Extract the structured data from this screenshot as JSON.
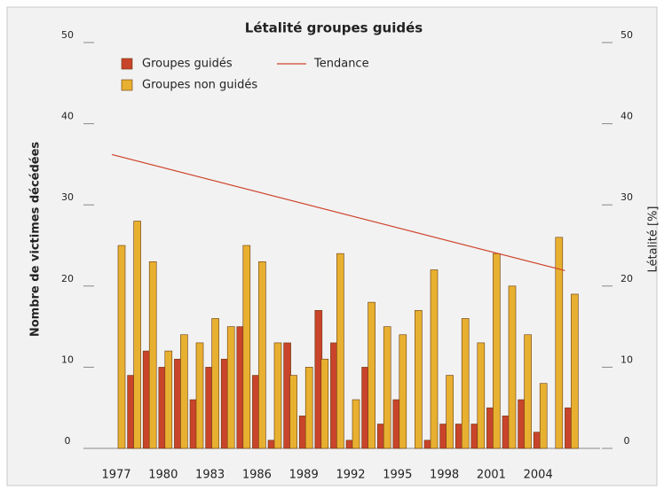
{
  "chart_data": {
    "type": "bar",
    "title": "Létalité groupes guidés",
    "y_label": "Nombre de victimes décédées",
    "y2_label": "Létalité [%]",
    "categories": [
      "1977",
      null,
      null,
      "1980",
      null,
      null,
      "1983",
      null,
      null,
      "1986",
      null,
      null,
      "1989",
      null,
      null,
      "1992",
      null,
      null,
      "1995",
      null,
      null,
      "1998",
      null,
      null,
      "2001",
      null,
      null,
      "2004",
      null,
      null
    ],
    "series": [
      {
        "name": "Groupes guidés",
        "color": "#c8442a",
        "values": [
          0,
          9,
          12,
          10,
          11,
          6,
          10,
          11,
          15,
          9,
          1,
          13,
          4,
          17,
          13,
          1,
          10,
          3,
          6,
          0,
          1,
          3,
          3,
          3,
          5,
          4,
          6,
          2,
          0,
          5
        ]
      },
      {
        "name": "Groupes non guidés",
        "color": "#e8b030",
        "values": [
          25,
          28,
          23,
          12,
          14,
          13,
          16,
          15,
          25,
          23,
          13,
          9,
          10,
          11,
          24,
          6,
          18,
          15,
          14,
          17,
          22,
          9,
          16,
          13,
          24,
          20,
          14,
          8,
          26,
          19
        ]
      }
    ],
    "trend": {
      "name": "Tendance",
      "color": "#d0452e",
      "type": "line",
      "x": [
        0,
        29
      ],
      "values": [
        36.2,
        21.9
      ],
      "axis": "y2"
    },
    "ylim": [
      0,
      50
    ],
    "yticks": [
      0,
      10,
      20,
      30,
      40,
      50
    ],
    "y2lim": [
      0,
      50
    ],
    "y2ticks": [
      0,
      10,
      20,
      30,
      40,
      50
    ]
  }
}
